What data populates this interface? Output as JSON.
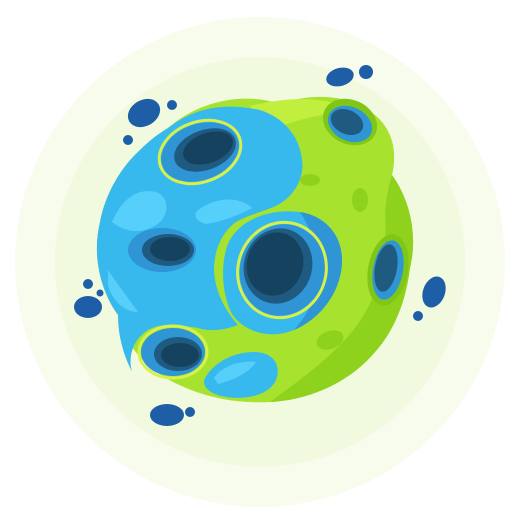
{
  "illustration": {
    "subject": "crater-planet",
    "colors": {
      "halo": "#f5fbe6",
      "lime": "#a6e22e",
      "lime_dark": "#7fc617",
      "lime_light": "#c6f040",
      "cyan": "#36b8ee",
      "cyan_light": "#55cdfb",
      "blue_mid": "#2f95d5",
      "crater_inner": "#1f5a80",
      "crater_deep": "#15435f",
      "debris": "#1d5ea6",
      "outline": "#d7f04a"
    }
  }
}
